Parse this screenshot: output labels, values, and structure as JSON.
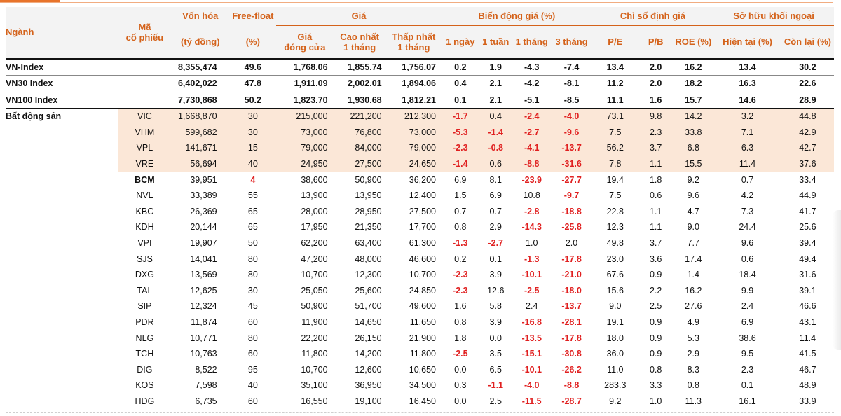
{
  "header": {
    "sector": "Ngành",
    "ticker_line1": "Mã",
    "ticker_line2": "cổ phiếu",
    "market_cap": "Vốn hóa",
    "market_cap_unit": "(tỷ đồng)",
    "free_float": "Free-float",
    "free_float_unit": "(%)",
    "price_group": "Giá",
    "close_l1": "Giá",
    "close_l2": "đóng cửa",
    "high_l1": "Cao nhất",
    "high_l2": "1 tháng",
    "low_l1": "Thấp nhất",
    "low_l2": "1 tháng",
    "change_group": "Biến động giá (%)",
    "d1": "1 ngày",
    "w1": "1 tuần",
    "m1": "1 tháng",
    "m3": "3 tháng",
    "valuation_group": "Chỉ số định giá",
    "pe": "P/E",
    "pb": "P/B",
    "roe": "ROE (%)",
    "foreign_group": "Sở hữu khối ngoại",
    "current": "Hiện tại (%)",
    "remaining": "Còn lại (%)"
  },
  "indices": [
    {
      "name": "VN-Index",
      "cap": "8,355,474",
      "ff": "49.6",
      "close": "1,768.06",
      "high": "1,855.74",
      "low": "1,756.07",
      "d1": "0.2",
      "w1": "1.9",
      "m1": "-4.3",
      "m3": "-7.4",
      "pe": "13.4",
      "pb": "2.0",
      "roe": "16.2",
      "cur": "13.4",
      "rem": "30.2"
    },
    {
      "name": "VN30 Index",
      "cap": "6,402,022",
      "ff": "47.8",
      "close": "1,911.09",
      "high": "2,002.01",
      "low": "1,894.06",
      "d1": "0.4",
      "w1": "2.1",
      "m1": "-4.2",
      "m3": "-8.1",
      "pe": "11.2",
      "pb": "2.0",
      "roe": "18.2",
      "cur": "16.3",
      "rem": "22.6"
    },
    {
      "name": "VN100 Index",
      "cap": "7,730,868",
      "ff": "50.2",
      "close": "1,823.70",
      "high": "1,930.68",
      "low": "1,812.21",
      "d1": "0.1",
      "w1": "2.1",
      "m1": "-5.1",
      "m3": "-8.5",
      "pe": "11.1",
      "pb": "1.6",
      "roe": "15.7",
      "cur": "14.6",
      "rem": "28.9"
    }
  ],
  "sector_name": "Bất động sản",
  "stocks": [
    {
      "t": "VIC",
      "cap": "1,668,870",
      "ff": "30",
      "close": "215,000",
      "high": "221,200",
      "low": "212,300",
      "d1": "-1.7",
      "w1": "0.4",
      "m1": "-2.4",
      "m3": "-4.0",
      "pe": "73.1",
      "pb": "9.8",
      "roe": "14.2",
      "cur": "3.2",
      "rem": "44.8"
    },
    {
      "t": "VHM",
      "cap": "599,682",
      "ff": "30",
      "close": "73,000",
      "high": "76,800",
      "low": "73,000",
      "d1": "-5.3",
      "w1": "-1.4",
      "m1": "-2.7",
      "m3": "-9.6",
      "pe": "7.5",
      "pb": "2.3",
      "roe": "33.8",
      "cur": "7.1",
      "rem": "42.9"
    },
    {
      "t": "VPL",
      "cap": "141,671",
      "ff": "15",
      "close": "79,000",
      "high": "84,000",
      "low": "79,000",
      "d1": "-2.3",
      "w1": "-0.8",
      "m1": "-4.1",
      "m3": "-13.7",
      "pe": "56.2",
      "pb": "3.7",
      "roe": "6.8",
      "cur": "6.3",
      "rem": "42.7"
    },
    {
      "t": "VRE",
      "cap": "56,694",
      "ff": "40",
      "close": "24,950",
      "high": "27,500",
      "low": "24,650",
      "d1": "-1.4",
      "w1": "0.6",
      "m1": "-8.8",
      "m3": "-31.6",
      "pe": "7.8",
      "pb": "1.1",
      "roe": "15.5",
      "cur": "11.4",
      "rem": "37.6"
    },
    {
      "t": "BCM",
      "cap": "39,951",
      "ff": "4",
      "close": "38,600",
      "high": "50,900",
      "low": "36,200",
      "d1": "6.9",
      "w1": "8.1",
      "m1": "-23.9",
      "m3": "-27.7",
      "pe": "19.4",
      "pb": "1.8",
      "roe": "9.2",
      "cur": "0.7",
      "rem": "33.4"
    },
    {
      "t": "NVL",
      "cap": "33,389",
      "ff": "55",
      "close": "13,900",
      "high": "13,950",
      "low": "12,400",
      "d1": "1.5",
      "w1": "6.9",
      "m1": "10.8",
      "m3": "-9.7",
      "pe": "7.5",
      "pb": "0.6",
      "roe": "9.6",
      "cur": "4.2",
      "rem": "44.9"
    },
    {
      "t": "KBC",
      "cap": "26,369",
      "ff": "65",
      "close": "28,000",
      "high": "28,950",
      "low": "27,500",
      "d1": "0.7",
      "w1": "0.7",
      "m1": "-2.8",
      "m3": "-18.8",
      "pe": "22.8",
      "pb": "1.1",
      "roe": "4.7",
      "cur": "7.3",
      "rem": "41.7"
    },
    {
      "t": "KDH",
      "cap": "20,144",
      "ff": "65",
      "close": "17,950",
      "high": "21,350",
      "low": "17,700",
      "d1": "0.8",
      "w1": "2.9",
      "m1": "-14.3",
      "m3": "-25.8",
      "pe": "12.3",
      "pb": "1.1",
      "roe": "9.0",
      "cur": "24.4",
      "rem": "25.6"
    },
    {
      "t": "VPI",
      "cap": "19,907",
      "ff": "50",
      "close": "62,200",
      "high": "63,400",
      "low": "61,300",
      "d1": "-1.3",
      "w1": "-2.7",
      "m1": "1.0",
      "m3": "2.0",
      "pe": "49.8",
      "pb": "3.7",
      "roe": "7.7",
      "cur": "9.6",
      "rem": "39.4"
    },
    {
      "t": "SJS",
      "cap": "14,041",
      "ff": "80",
      "close": "47,200",
      "high": "48,000",
      "low": "46,600",
      "d1": "0.2",
      "w1": "0.1",
      "m1": "-1.3",
      "m3": "-17.8",
      "pe": "23.0",
      "pb": "3.6",
      "roe": "17.4",
      "cur": "0.6",
      "rem": "49.4"
    },
    {
      "t": "DXG",
      "cap": "13,569",
      "ff": "80",
      "close": "10,700",
      "high": "12,300",
      "low": "10,700",
      "d1": "-2.3",
      "w1": "3.9",
      "m1": "-10.1",
      "m3": "-21.0",
      "pe": "67.6",
      "pb": "0.9",
      "roe": "1.4",
      "cur": "18.4",
      "rem": "31.6"
    },
    {
      "t": "TAL",
      "cap": "12,625",
      "ff": "30",
      "close": "25,050",
      "high": "25,600",
      "low": "24,850",
      "d1": "-2.3",
      "w1": "12.6",
      "m1": "-2.5",
      "m3": "-18.0",
      "pe": "15.6",
      "pb": "2.2",
      "roe": "16.2",
      "cur": "9.9",
      "rem": "39.1"
    },
    {
      "t": "SIP",
      "cap": "12,324",
      "ff": "45",
      "close": "50,900",
      "high": "51,700",
      "low": "49,600",
      "d1": "1.6",
      "w1": "5.8",
      "m1": "2.4",
      "m3": "-13.7",
      "pe": "9.0",
      "pb": "2.5",
      "roe": "27.6",
      "cur": "2.4",
      "rem": "46.6"
    },
    {
      "t": "PDR",
      "cap": "11,874",
      "ff": "60",
      "close": "11,900",
      "high": "14,650",
      "low": "11,650",
      "d1": "0.8",
      "w1": "3.9",
      "m1": "-16.8",
      "m3": "-28.1",
      "pe": "19.1",
      "pb": "0.9",
      "roe": "4.9",
      "cur": "6.9",
      "rem": "43.1"
    },
    {
      "t": "NLG",
      "cap": "10,771",
      "ff": "80",
      "close": "22,200",
      "high": "26,150",
      "low": "21,900",
      "d1": "1.8",
      "w1": "0.0",
      "m1": "-13.5",
      "m3": "-17.8",
      "pe": "18.0",
      "pb": "0.9",
      "roe": "5.3",
      "cur": "38.6",
      "rem": "11.4"
    },
    {
      "t": "TCH",
      "cap": "10,763",
      "ff": "60",
      "close": "11,800",
      "high": "14,200",
      "low": "11,800",
      "d1": "-2.5",
      "w1": "3.5",
      "m1": "-15.1",
      "m3": "-30.8",
      "pe": "36.0",
      "pb": "0.9",
      "roe": "2.9",
      "cur": "9.5",
      "rem": "41.5"
    },
    {
      "t": "DIG",
      "cap": "8,522",
      "ff": "95",
      "close": "10,700",
      "high": "12,600",
      "low": "10,650",
      "d1": "0.0",
      "w1": "6.5",
      "m1": "-10.1",
      "m3": "-26.2",
      "pe": "11.0",
      "pb": "0.8",
      "roe": "8.3",
      "cur": "2.3",
      "rem": "46.7"
    },
    {
      "t": "KOS",
      "cap": "7,598",
      "ff": "40",
      "close": "35,100",
      "high": "36,950",
      "low": "34,500",
      "d1": "0.3",
      "w1": "-1.1",
      "m1": "-4.0",
      "m3": "-8.8",
      "pe": "283.3",
      "pb": "3.3",
      "roe": "0.8",
      "cur": "0.1",
      "rem": "48.9"
    },
    {
      "t": "HDG",
      "cap": "6,735",
      "ff": "60",
      "close": "16,550",
      "high": "19,100",
      "low": "16,450",
      "d1": "0.0",
      "w1": "2.5",
      "m1": "-11.5",
      "m3": "-28.7",
      "pe": "9.2",
      "pb": "1.0",
      "roe": "11.3",
      "cur": "16.1",
      "rem": "33.9"
    }
  ],
  "colors": {
    "accent": "#d4621a",
    "negative": "#e02020",
    "highlight": "#fbe7d7"
  }
}
